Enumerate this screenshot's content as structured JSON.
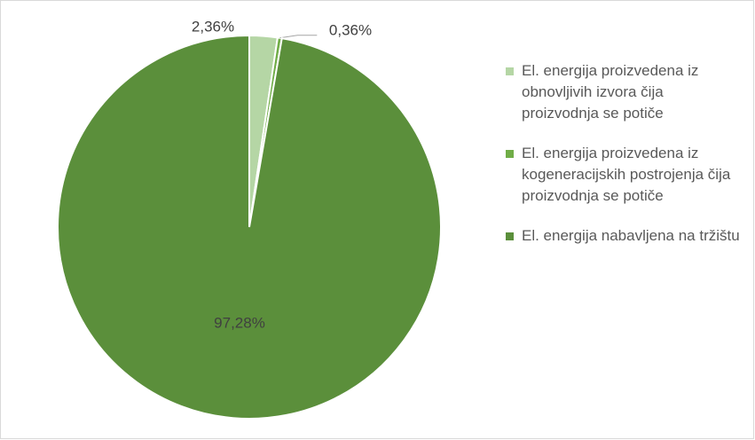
{
  "chart_data": {
    "type": "pie",
    "categories": [
      "El. energija proizvedena iz obnovljivih izvora čija proizvodnja se potiče",
      "El. energija proizvedena iz kogeneracijskih postrojenja čija proizvodnja se potiče",
      "El. energija nabavljena na tržištu"
    ],
    "values": [
      2.36,
      0.36,
      97.28
    ],
    "value_labels": [
      "2,36%",
      "0,36%",
      "97,28%"
    ],
    "colors": [
      "#b5d6a5",
      "#70ad47",
      "#5b8f3b"
    ],
    "legend": "right"
  }
}
